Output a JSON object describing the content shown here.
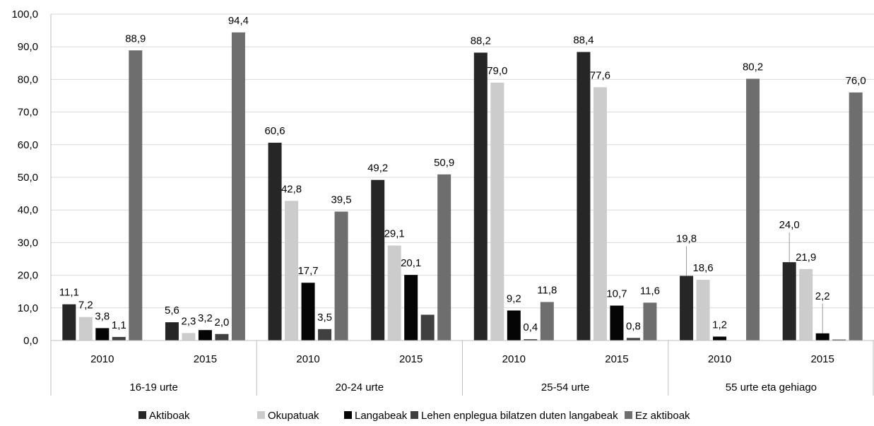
{
  "chart_data": {
    "type": "bar",
    "title": "",
    "xlabel": "",
    "ylabel": "",
    "ylim": [
      0,
      100
    ],
    "ytick_step": 10,
    "ytick_labels": [
      "0,0",
      "10,0",
      "20,0",
      "30,0",
      "40,0",
      "50,0",
      "60,0",
      "70,0",
      "80,0",
      "90,0",
      "100,0"
    ],
    "grid": true,
    "legend_position": "bottom",
    "groups": [
      {
        "label": "16-19 urte",
        "years": [
          "2010",
          "2015"
        ]
      },
      {
        "label": "20-24 urte",
        "years": [
          "2010",
          "2015"
        ]
      },
      {
        "label": "25-54 urte",
        "years": [
          "2010",
          "2015"
        ]
      },
      {
        "label": "55 urte eta gehiago",
        "years": [
          "2010",
          "2015"
        ]
      }
    ],
    "categories": [
      "16-19 urte 2010",
      "16-19 urte 2015",
      "20-24 urte 2010",
      "20-24 urte 2015",
      "25-54 urte 2010",
      "25-54 urte 2015",
      "55 urte eta gehiago 2010",
      "55 urte eta gehiago 2015"
    ],
    "series": [
      {
        "name": "Aktiboak",
        "color": "#262626",
        "values": [
          11.1,
          5.6,
          60.6,
          49.2,
          88.2,
          88.4,
          19.8,
          24.0
        ],
        "labels": [
          "11,1",
          "5,6",
          "60,6",
          "49,2",
          "88,2",
          "88,4",
          "19,8",
          "24,0"
        ]
      },
      {
        "name": "Okupatuak",
        "color": "#cccccc",
        "values": [
          7.2,
          2.3,
          42.8,
          29.1,
          79.0,
          77.6,
          18.6,
          21.9
        ],
        "labels": [
          "7,2",
          "2,3",
          "42,8",
          "29,1",
          "79,0",
          "77,6",
          "18,6",
          "21,9"
        ]
      },
      {
        "name": "Langabeak",
        "color": "#050505",
        "values": [
          3.8,
          3.2,
          17.7,
          20.1,
          9.2,
          10.7,
          1.2,
          2.2
        ],
        "labels": [
          "3,8",
          "3,2",
          "17,7",
          "20,1",
          "9,2",
          "10,7",
          "1,2",
          "2,2"
        ]
      },
      {
        "name": "Lehen enplegua bilatzen duten langabeak",
        "color": "#404040",
        "values": [
          1.1,
          2.0,
          3.5,
          7.9,
          0.4,
          0.8,
          0,
          0.3
        ],
        "labels": [
          "1,1",
          "2,0",
          "3,5",
          "",
          "0,4",
          "0,8",
          "",
          ""
        ]
      },
      {
        "name": "Ez aktiboak",
        "color": "#6e6e6e",
        "values": [
          88.9,
          94.4,
          39.5,
          50.9,
          11.8,
          11.6,
          80.2,
          76.0
        ],
        "labels": [
          "88,9",
          "94,4",
          "39,5",
          "50,9",
          "11,8",
          "11,6",
          "80,2",
          "76,0"
        ]
      }
    ]
  }
}
